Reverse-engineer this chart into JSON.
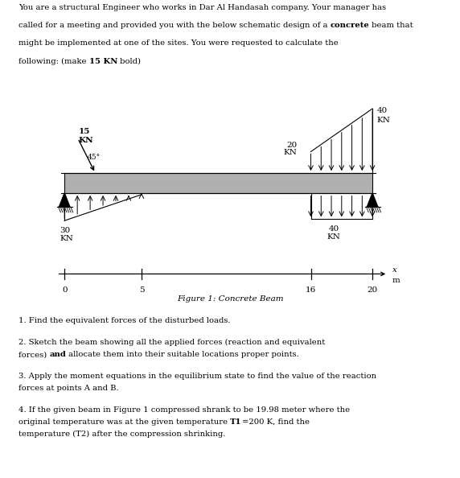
{
  "fig_width": 5.72,
  "fig_height": 5.94,
  "dpi": 100,
  "beam_color": "#b0b0b0",
  "beam_edge_color": "#000000",
  "background_color": "#ffffff",
  "scale_bar_ticks": [
    0,
    5,
    16,
    20
  ],
  "figure_caption": "Figure 1: Concrete Beam",
  "header_line1": "You are a structural Engineer who works in Dar Al Handasah company. Your manager has",
  "header_line2_pre": "called for a meeting and provided you with the below schematic design of a ",
  "header_line2_bold": "concrete",
  "header_line2_post": " beam that",
  "header_line3": "might be implemented at one of the sites. You were requested to calculate the",
  "header_line4_pre": "following: (make ",
  "header_line4_bold": "15 KN",
  "header_line4_post": " bold)",
  "q1": "1. Find the equivalent forces of the disturbed loads.",
  "q2_line1": "2. Sketch the beam showing all the applied forces (reaction and equivalent",
  "q2_line2_pre": "forces) ",
  "q2_line2_bold": "and",
  "q2_line2_post": " allocate them into their suitable locations proper points.",
  "q3_line1": "3. Apply the moment equations in the equilibrium state to find the value of the reaction",
  "q3_line2": "forces at points A and B.",
  "q4_line1": "4. If the given beam in Figure 1 compressed shrank to be 19.98 meter where the",
  "q4_line2_pre": "original temperature was at the given temperature ",
  "q4_line2_italic": "T1",
  "q4_line2_mid": "=200 ",
  "q4_line2_italic2": "K",
  "q4_line2_post": ", find the",
  "q4_line3": "temperature (T2) after the compression shrinking."
}
